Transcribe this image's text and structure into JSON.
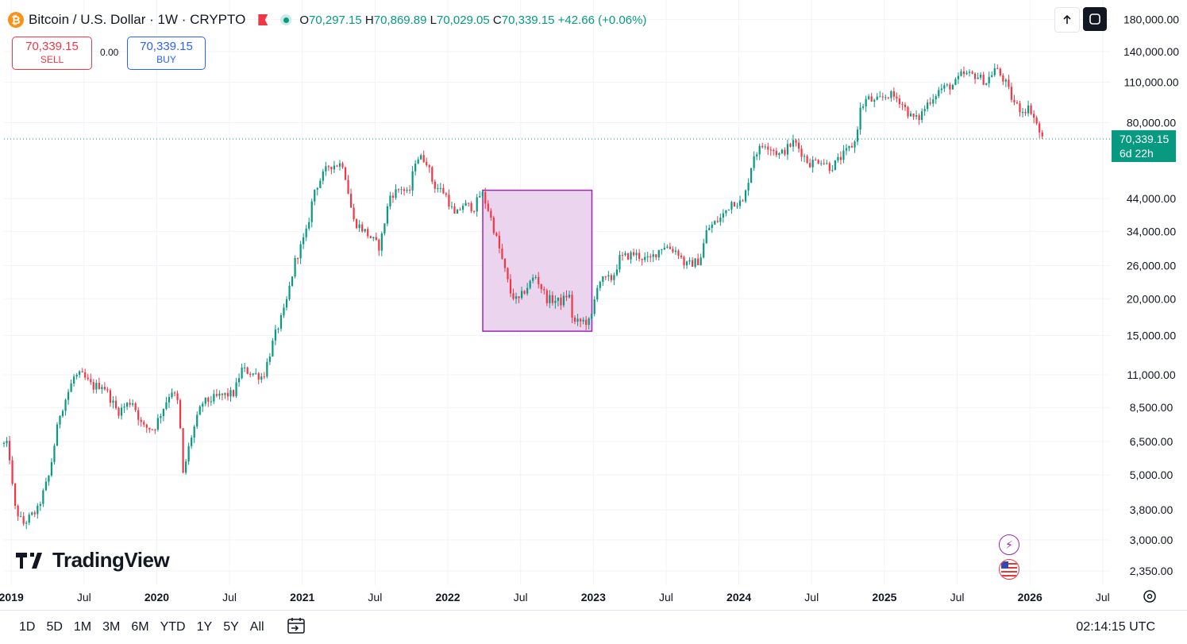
{
  "header": {
    "coin_glyph": "₿",
    "title": "Bitcoin / U.S. Dollar · 1W · CRYPTO",
    "ohlc": {
      "o_label": "O",
      "o": "70,297.15",
      "h_label": "H",
      "h": "70,869.89",
      "l_label": "L",
      "l": "70,029.05",
      "c_label": "C",
      "c": "70,339.15",
      "change": "+42.66 (+0.06%)"
    }
  },
  "trade": {
    "sell_price": "70,339.15",
    "sell_label": "SELL",
    "spread": "0.00",
    "buy_price": "70,339.15",
    "buy_label": "BUY"
  },
  "toolbar": {
    "up_icon": "arrow-up-icon",
    "fullscreen_icon": "fullscreen-icon"
  },
  "price_tag": {
    "price": "70,339.15",
    "countdown": "6d 22h"
  },
  "logo_text": "TradingView",
  "timeframes": [
    "1D",
    "5D",
    "1M",
    "3M",
    "6M",
    "YTD",
    "1Y",
    "5Y",
    "All"
  ],
  "clock": "02:14:15 UTC",
  "colors": {
    "up": "#089981",
    "down": "#f23645",
    "box_fill": "#e7cdea",
    "box_border": "#9c27b0",
    "accent": "#2962ff"
  },
  "chart_data": {
    "type": "candlestick",
    "symbol": "BTCUSD",
    "interval": "1W",
    "scale": "log",
    "ylim": [
      2100,
      210000
    ],
    "xlim": [
      2018.95,
      2026.55
    ],
    "y_ticks": [
      "180,000.00",
      "140,000.00",
      "110,000.00",
      "80,000.00",
      "44,000.00",
      "34,000.00",
      "26,000.00",
      "20,000.00",
      "15,000.00",
      "11,000.00",
      "8,500.00",
      "6,500.00",
      "5,000.00",
      "3,800.00",
      "3,000.00",
      "2,350.00"
    ],
    "y_tick_values": [
      180000,
      140000,
      110000,
      80000,
      44000,
      34000,
      26000,
      20000,
      15000,
      11000,
      8500,
      6500,
      5000,
      3800,
      3000,
      2350
    ],
    "x_ticks": [
      {
        "label": "2019",
        "t": 2019.0,
        "bold": true
      },
      {
        "label": "Jul",
        "t": 2019.5,
        "bold": false
      },
      {
        "label": "2020",
        "t": 2020.0,
        "bold": true
      },
      {
        "label": "Jul",
        "t": 2020.5,
        "bold": false
      },
      {
        "label": "2021",
        "t": 2021.0,
        "bold": true
      },
      {
        "label": "Jul",
        "t": 2021.5,
        "bold": false
      },
      {
        "label": "2022",
        "t": 2022.0,
        "bold": true
      },
      {
        "label": "Jul",
        "t": 2022.5,
        "bold": false
      },
      {
        "label": "2023",
        "t": 2023.0,
        "bold": true
      },
      {
        "label": "Jul",
        "t": 2023.5,
        "bold": false
      },
      {
        "label": "2024",
        "t": 2024.0,
        "bold": true
      },
      {
        "label": "Jul",
        "t": 2024.5,
        "bold": false
      },
      {
        "label": "2025",
        "t": 2025.0,
        "bold": true
      },
      {
        "label": "Jul",
        "t": 2025.5,
        "bold": false
      },
      {
        "label": "2026",
        "t": 2026.0,
        "bold": true
      },
      {
        "label": "Jul",
        "t": 2026.5,
        "bold": false
      }
    ],
    "last_price": 70339.15,
    "anchors": [
      [
        2018.95,
        6400
      ],
      [
        2019.0,
        6300
      ],
      [
        2019.04,
        3900
      ],
      [
        2019.1,
        3400
      ],
      [
        2019.2,
        3800
      ],
      [
        2019.28,
        5000
      ],
      [
        2019.35,
        8000
      ],
      [
        2019.45,
        10800
      ],
      [
        2019.5,
        11000
      ],
      [
        2019.58,
        10000
      ],
      [
        2019.65,
        10200
      ],
      [
        2019.75,
        8200
      ],
      [
        2019.85,
        9000
      ],
      [
        2019.92,
        7300
      ],
      [
        2020.0,
        7200
      ],
      [
        2020.12,
        9800
      ],
      [
        2020.17,
        8700
      ],
      [
        2020.2,
        5000
      ],
      [
        2020.25,
        6600
      ],
      [
        2020.33,
        8800
      ],
      [
        2020.45,
        9300
      ],
      [
        2020.55,
        9500
      ],
      [
        2020.6,
        11500
      ],
      [
        2020.75,
        10800
      ],
      [
        2020.83,
        15000
      ],
      [
        2020.9,
        18500
      ],
      [
        2020.97,
        27000
      ],
      [
        2021.05,
        34000
      ],
      [
        2021.1,
        47000
      ],
      [
        2021.2,
        57000
      ],
      [
        2021.3,
        58000
      ],
      [
        2021.37,
        37000
      ],
      [
        2021.45,
        34000
      ],
      [
        2021.55,
        30000
      ],
      [
        2021.62,
        45000
      ],
      [
        2021.7,
        48000
      ],
      [
        2021.75,
        45000
      ],
      [
        2021.8,
        61000
      ],
      [
        2021.87,
        60000
      ],
      [
        2021.92,
        49000
      ],
      [
        2022.0,
        46000
      ],
      [
        2022.07,
        38000
      ],
      [
        2022.12,
        42000
      ],
      [
        2022.2,
        41000
      ],
      [
        2022.25,
        46500
      ],
      [
        2022.3,
        40000
      ],
      [
        2022.37,
        30000
      ],
      [
        2022.45,
        21000
      ],
      [
        2022.5,
        19500
      ],
      [
        2022.55,
        21500
      ],
      [
        2022.62,
        24000
      ],
      [
        2022.7,
        20000
      ],
      [
        2022.8,
        19500
      ],
      [
        2022.85,
        21000
      ],
      [
        2022.88,
        16500
      ],
      [
        2022.95,
        16800
      ],
      [
        2023.0,
        16600
      ],
      [
        2023.05,
        23000
      ],
      [
        2023.15,
        23500
      ],
      [
        2023.2,
        27500
      ],
      [
        2023.3,
        28500
      ],
      [
        2023.4,
        27000
      ],
      [
        2023.5,
        30500
      ],
      [
        2023.6,
        29000
      ],
      [
        2023.65,
        26000
      ],
      [
        2023.75,
        27000
      ],
      [
        2023.8,
        34500
      ],
      [
        2023.9,
        38000
      ],
      [
        2023.97,
        43000
      ],
      [
        2024.05,
        42500
      ],
      [
        2024.12,
        62000
      ],
      [
        2024.2,
        68000
      ],
      [
        2024.3,
        62000
      ],
      [
        2024.4,
        69000
      ],
      [
        2024.5,
        58000
      ],
      [
        2024.58,
        60000
      ],
      [
        2024.65,
        56000
      ],
      [
        2024.75,
        63000
      ],
      [
        2024.82,
        69000
      ],
      [
        2024.85,
        88000
      ],
      [
        2024.9,
        97000
      ],
      [
        2024.95,
        94000
      ],
      [
        2025.05,
        100000
      ],
      [
        2025.12,
        96000
      ],
      [
        2025.2,
        84000
      ],
      [
        2025.25,
        82000
      ],
      [
        2025.32,
        94000
      ],
      [
        2025.4,
        104000
      ],
      [
        2025.5,
        108000
      ],
      [
        2025.55,
        117000
      ],
      [
        2025.65,
        116000
      ],
      [
        2025.72,
        110000
      ],
      [
        2025.78,
        123000
      ],
      [
        2025.85,
        110000
      ],
      [
        2025.9,
        95000
      ],
      [
        2025.96,
        88000
      ],
      [
        2026.02,
        90000
      ],
      [
        2026.07,
        78000
      ],
      [
        2026.1,
        70339
      ]
    ],
    "box": {
      "t0": 2022.24,
      "t1": 2022.99,
      "p_top": 47000,
      "p_bottom": 15500
    }
  }
}
